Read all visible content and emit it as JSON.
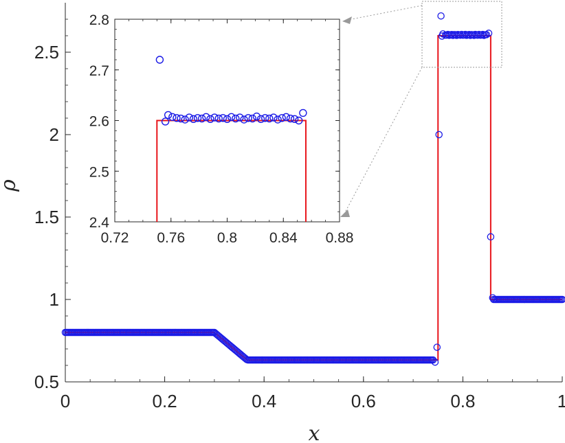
{
  "chart_data": [
    {
      "type": "line",
      "xlabel": "x",
      "ylabel": "ρ",
      "xlim": [
        0,
        1
      ],
      "ylim": [
        0.5,
        2.8
      ],
      "xticks": [
        "0",
        "0.2",
        "0.4",
        "0.6",
        "0.8",
        "1"
      ],
      "yticks": [
        "0.5",
        "1",
        "1.5",
        "2",
        "2.5"
      ],
      "grid": false,
      "colors": {
        "exact": "#e8141a",
        "numerical": "#1a1ae6",
        "axes": "#262626",
        "zoom_guide": "#999999"
      },
      "exact_solution": {
        "x": [
          0,
          0.3,
          0.366,
          0.75,
          0.75,
          0.856,
          0.856,
          1
        ],
        "y": [
          0.8,
          0.8,
          0.633,
          0.633,
          2.6,
          2.6,
          1.0,
          1.0
        ]
      },
      "numerical_solution": {
        "marker": "circle",
        "outliers_x": [
          0.744,
          0.748,
          0.752,
          0.756,
          0.758,
          0.76,
          0.852,
          0.856,
          0.86,
          0.862
        ],
        "outliers_y": [
          0.62,
          0.71,
          2.0,
          2.72,
          2.598,
          2.611,
          2.615,
          1.38,
          1.01,
          1.0
        ]
      }
    },
    {
      "type": "line",
      "inset": true,
      "xlim": [
        0.72,
        0.88
      ],
      "ylim": [
        2.4,
        2.8
      ],
      "xticks": [
        "0.72",
        "0.76",
        "0.8",
        "0.84",
        "0.88"
      ],
      "yticks": [
        "2.4",
        "2.5",
        "2.6",
        "2.7",
        "2.8"
      ],
      "exact_solution": {
        "x": [
          0.75,
          0.75,
          0.856,
          0.856
        ],
        "y": [
          2.4,
          2.6,
          2.6,
          2.4
        ]
      },
      "numerical_solution": {
        "marker": "circle",
        "x": [
          0.752,
          0.756,
          0.758,
          0.761,
          0.764,
          0.767,
          0.77,
          0.773,
          0.776,
          0.779,
          0.782,
          0.785,
          0.788,
          0.791,
          0.794,
          0.797,
          0.8,
          0.803,
          0.806,
          0.809,
          0.812,
          0.815,
          0.818,
          0.821,
          0.824,
          0.827,
          0.83,
          0.833,
          0.836,
          0.839,
          0.842,
          0.845,
          0.848,
          0.851,
          0.854
        ],
        "y": [
          2.72,
          2.598,
          2.611,
          2.607,
          2.605,
          2.604,
          2.602,
          2.606,
          2.603,
          2.605,
          2.604,
          2.607,
          2.603,
          2.606,
          2.604,
          2.605,
          2.603,
          2.607,
          2.604,
          2.606,
          2.602,
          2.605,
          2.604,
          2.608,
          2.603,
          2.605,
          2.604,
          2.606,
          2.602,
          2.605,
          2.607,
          2.604,
          2.603,
          2.6,
          2.615
        ]
      }
    }
  ]
}
